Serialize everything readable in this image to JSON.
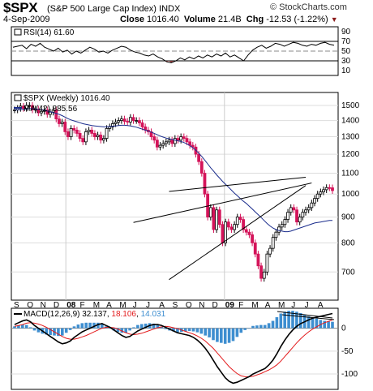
{
  "header": {
    "symbol": "$SPX",
    "name": "(S&P 500 Large Cap Index)",
    "exchange": "INDX",
    "provider": "© StockCharts.com",
    "date": "4-Sep-2009",
    "close_label": "Close",
    "close_value": "1016.40",
    "volume_label": "Volume",
    "volume_value": "21.4B",
    "chg_label": "Chg",
    "chg_value": "-12.53 (-1.22%)",
    "chg_arrow": "▼"
  },
  "colors": {
    "up": "#ffffff",
    "down": "#d4145a",
    "ma_line": "#1a2c8c",
    "macd_line": "#000000",
    "signal_line": "#e31a1c",
    "histogram": "#3e8ed0",
    "rsi_fill": "#8b3a3a"
  },
  "chart_data": [
    {
      "type": "line",
      "panel": "rsi",
      "title": "RSI(14) 61.60",
      "ylim": [
        0,
        100
      ],
      "yticks": [
        90,
        70,
        50,
        30,
        10
      ],
      "reference_lines": [
        70,
        30
      ],
      "values": [
        58,
        60,
        62,
        55,
        64,
        60,
        66,
        58,
        54,
        50,
        56,
        48,
        52,
        44,
        50,
        46,
        52,
        58,
        54,
        48,
        50,
        46,
        52,
        56,
        60,
        58,
        52,
        48,
        46,
        42,
        40,
        44,
        38,
        34,
        28,
        26,
        30,
        36,
        32,
        38,
        34,
        40,
        36,
        42,
        38,
        44,
        40,
        46,
        38,
        42,
        36,
        30,
        42,
        52,
        58,
        62,
        56,
        60,
        66,
        64,
        60,
        64,
        68,
        66,
        62,
        60,
        64,
        62,
        66,
        68,
        64,
        62
      ]
    },
    {
      "type": "candlestick",
      "panel": "price",
      "title": "$SPX (Weekly) 1016.40",
      "series_labels": [
        "$SPX (Weekly) 1016.40",
        "MA(42) 885.56"
      ],
      "yscale": "log",
      "ylim": [
        620,
        1580
      ],
      "yticks": [
        1500,
        1400,
        1300,
        1200,
        1100,
        1000,
        900,
        800,
        700
      ],
      "xlabels": [
        "S",
        "O",
        "N",
        "D",
        "08",
        "F",
        "M",
        "A",
        "M",
        "J",
        "J",
        "A",
        "S",
        "O",
        "N",
        "D",
        "09",
        "F",
        "M",
        "A",
        "M",
        "J",
        "J",
        "A"
      ],
      "close": [
        1470,
        1480,
        1495,
        1480,
        1500,
        1500,
        1470,
        1475,
        1450,
        1460,
        1470,
        1440,
        1455,
        1470,
        1410,
        1380,
        1390,
        1330,
        1300,
        1350,
        1340,
        1320,
        1290,
        1270,
        1330,
        1340,
        1320,
        1300,
        1310,
        1280,
        1290,
        1350,
        1360,
        1380,
        1390,
        1400,
        1410,
        1395,
        1390,
        1420,
        1400,
        1400,
        1385,
        1360,
        1340,
        1330,
        1300,
        1280,
        1240,
        1250,
        1260,
        1270,
        1280,
        1260,
        1290,
        1280,
        1300,
        1290,
        1270,
        1250,
        1240,
        1200,
        1160,
        1100,
        1000,
        900,
        940,
        850,
        930,
        870,
        800,
        880,
        860,
        850,
        870,
        900,
        890,
        850,
        840,
        830,
        800,
        760,
        720,
        680,
        700,
        760,
        780,
        820,
        840,
        860,
        870,
        890,
        920,
        940,
        930,
        880,
        900,
        920,
        930,
        940,
        960,
        980,
        1000,
        1010,
        1020,
        1030,
        1029,
        1016
      ],
      "ma42": [
        1470,
        1470,
        1472,
        1474,
        1476,
        1478,
        1478,
        1476,
        1474,
        1470,
        1468,
        1462,
        1458,
        1452,
        1446,
        1440,
        1432,
        1422,
        1412,
        1404,
        1398,
        1392,
        1386,
        1380,
        1376,
        1372,
        1368,
        1366,
        1364,
        1362,
        1360,
        1360,
        1362,
        1364,
        1366,
        1368,
        1370,
        1370,
        1368,
        1366,
        1362,
        1358,
        1352,
        1346,
        1340,
        1334,
        1328,
        1320,
        1312,
        1304,
        1298,
        1292,
        1288,
        1284,
        1280,
        1276,
        1272,
        1266,
        1258,
        1248,
        1236,
        1222,
        1206,
        1188,
        1168,
        1148,
        1128,
        1110,
        1092,
        1076,
        1060,
        1046,
        1032,
        1018,
        1004,
        992,
        980,
        968,
        958,
        946,
        934,
        922,
        910,
        898,
        886,
        874,
        864,
        856,
        850,
        846,
        844,
        842,
        842,
        844,
        848,
        852,
        856,
        860,
        864,
        868,
        872,
        876,
        878,
        880,
        882,
        884,
        886,
        886
      ],
      "trendlines": [
        {
          "from": [
            52,
            1012
          ],
          "to": [
            98,
            1080
          ]
        },
        {
          "from": [
            52,
            676
          ],
          "to": [
            98,
            1040
          ]
        },
        {
          "from": [
            40,
            878
          ],
          "to": [
            100,
            1052
          ]
        }
      ]
    },
    {
      "type": "line",
      "panel": "macd",
      "title": "MACD(12,26,9) 32.137, 18.106, 14.031",
      "title_parts": {
        "label": "MACD(12,26,9)",
        "macd": "32.137",
        "signal": "18.106",
        "hist": "14.031"
      },
      "ylim": [
        -130,
        40
      ],
      "yticks": [
        0,
        -50,
        -100
      ],
      "macd": [
        8,
        12,
        16,
        18,
        14,
        6,
        0,
        -6,
        -12,
        -18,
        -24,
        -30,
        -34,
        -32,
        -28,
        -20,
        -14,
        -8,
        -4,
        0,
        4,
        8,
        10,
        6,
        2,
        -4,
        -10,
        -16,
        -20,
        -18,
        -12,
        -6,
        -2,
        2,
        6,
        8,
        8,
        6,
        2,
        -2,
        -6,
        -10,
        -12,
        -14,
        -16,
        -20,
        -26,
        -34,
        -44,
        -56,
        -70,
        -84,
        -96,
        -108,
        -116,
        -120,
        -118,
        -114,
        -110,
        -106,
        -100,
        -96,
        -92,
        -88,
        -80,
        -70,
        -56,
        -40,
        -26,
        -14,
        -4,
        4,
        10,
        14,
        18,
        22,
        24,
        26,
        28,
        30,
        32
      ],
      "signal": [
        4,
        6,
        8,
        11,
        12,
        11,
        9,
        6,
        2,
        -3,
        -8,
        -13,
        -18,
        -22,
        -24,
        -24,
        -22,
        -19,
        -16,
        -12,
        -8,
        -4,
        0,
        2,
        2,
        1,
        -2,
        -6,
        -10,
        -13,
        -14,
        -13,
        -11,
        -8,
        -5,
        -2,
        1,
        3,
        4,
        3,
        1,
        -1,
        -4,
        -7,
        -10,
        -13,
        -17,
        -22,
        -28,
        -36,
        -44,
        -54,
        -64,
        -74,
        -84,
        -92,
        -99,
        -104,
        -106,
        -106,
        -105,
        -102,
        -99,
        -95,
        -91,
        -86,
        -80,
        -72,
        -62,
        -52,
        -42,
        -32,
        -23,
        -15,
        -8,
        -2,
        3,
        8,
        12,
        15,
        18
      ]
    }
  ]
}
